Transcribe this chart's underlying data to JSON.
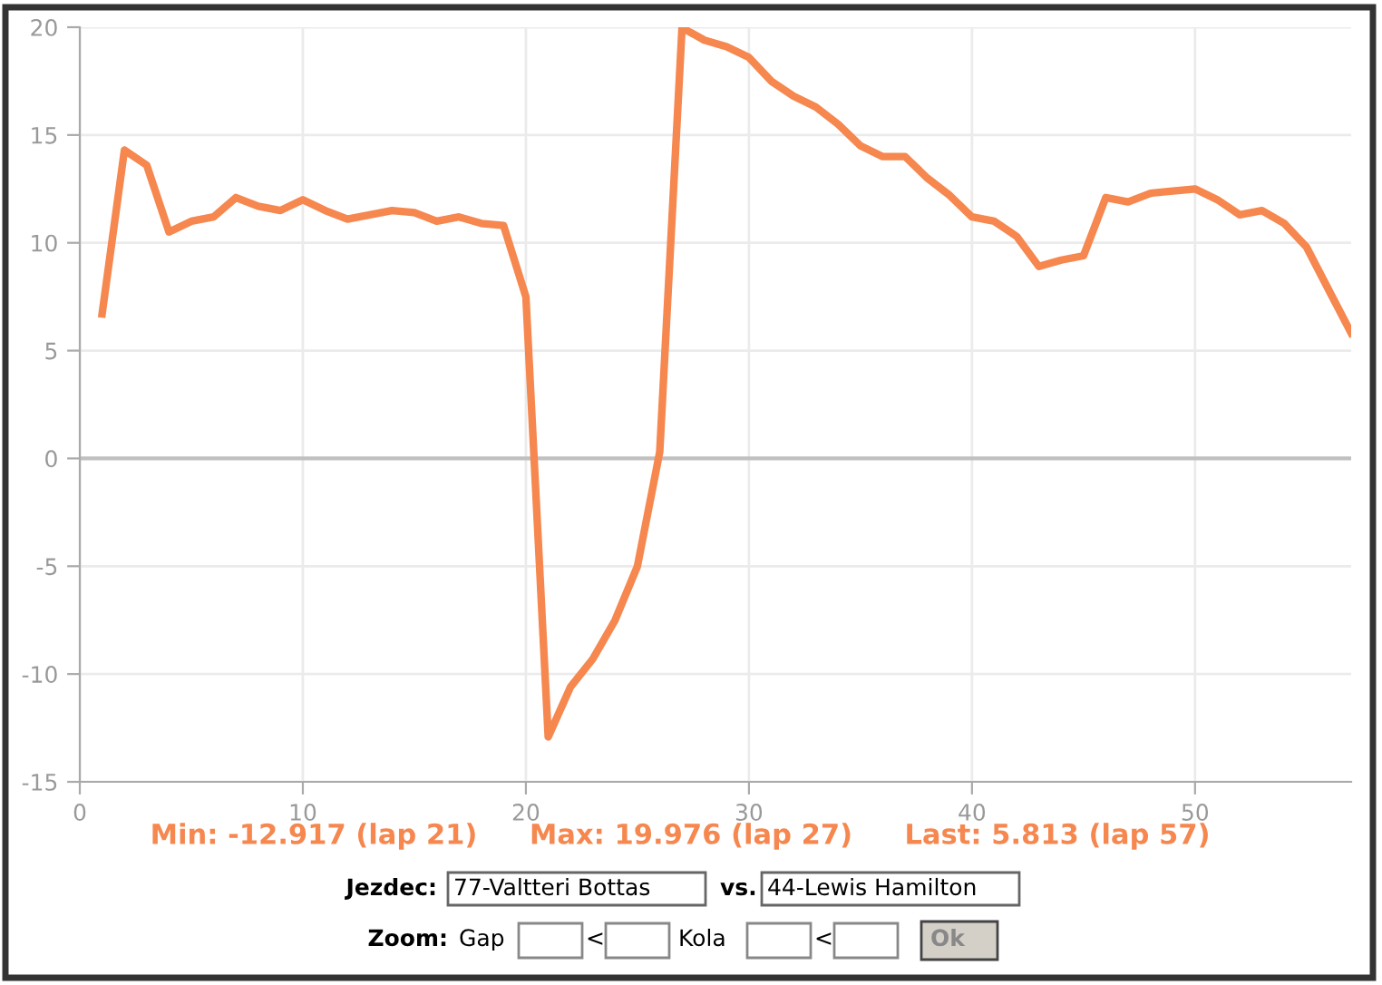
{
  "chart_data": {
    "type": "line",
    "x": [
      1,
      2,
      3,
      4,
      5,
      6,
      7,
      8,
      9,
      10,
      11,
      12,
      13,
      14,
      15,
      16,
      17,
      18,
      19,
      20,
      21,
      22,
      23,
      24,
      25,
      26,
      27,
      28,
      29,
      30,
      31,
      32,
      33,
      34,
      35,
      36,
      37,
      38,
      39,
      40,
      41,
      42,
      43,
      44,
      45,
      46,
      47,
      48,
      49,
      50,
      51,
      52,
      53,
      54,
      55,
      56,
      57
    ],
    "series": [
      {
        "color": "#f5874f",
        "values": [
          6.7,
          14.3,
          13.6,
          10.5,
          11.0,
          11.2,
          12.1,
          11.7,
          11.5,
          12.0,
          11.5,
          11.1,
          11.3,
          11.5,
          11.4,
          11.0,
          11.2,
          10.9,
          10.8,
          7.5,
          -12.917,
          -10.6,
          -9.3,
          -7.5,
          -5.0,
          0.3,
          19.976,
          19.4,
          19.1,
          18.6,
          17.5,
          16.8,
          16.3,
          15.5,
          14.5,
          14.0,
          14.0,
          13.0,
          12.2,
          11.2,
          11.0,
          10.3,
          8.9,
          9.2,
          9.4,
          12.1,
          11.9,
          12.3,
          12.4,
          12.5,
          12.0,
          11.3,
          11.5,
          10.9,
          9.8,
          7.8,
          5.813
        ]
      }
    ],
    "xlim": [
      0,
      57
    ],
    "xticks": [
      0,
      10,
      20,
      30,
      40,
      50
    ],
    "ylim": [
      -15,
      20
    ],
    "yticks": [
      -15,
      -10,
      -5,
      0,
      5,
      10,
      15,
      20
    ],
    "grid": true,
    "marker": "none",
    "line_style": "solid",
    "ref_lines": [
      {
        "axis": "y",
        "value": 0,
        "color": "#c0c0c0"
      }
    ],
    "annotations": [
      "Min: -12.917 (lap 21)",
      "Max: 19.976 (lap 27)",
      "Last: 5.813 (lap 57)",
      "Jezdec:",
      "77-Valtteri Bottas",
      "vs.",
      "44-Lewis Hamilton",
      "Zoom:",
      "Gap",
      "<",
      "Kola",
      "<",
      "Ok"
    ]
  }
}
